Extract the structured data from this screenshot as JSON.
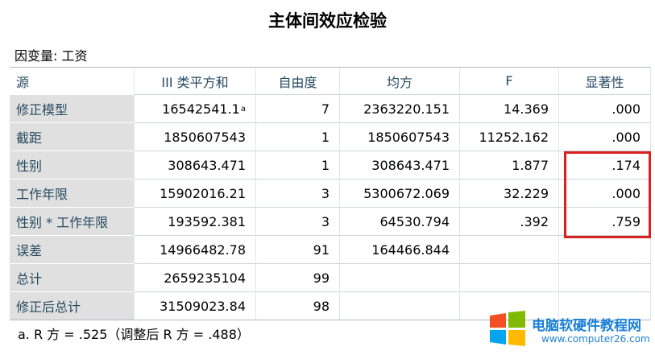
{
  "header": {
    "title": "主体间效应检验",
    "dependent": "因变量:  工资"
  },
  "table": {
    "columns": [
      "源",
      "III 类平方和",
      "自由度",
      "均方",
      "F",
      "显著性"
    ],
    "rows": [
      {
        "label": "修正模型",
        "values": [
          "16542541.1",
          "7",
          "2363220.151",
          "14.369",
          ".000"
        ],
        "note": "a"
      },
      {
        "label": "截距",
        "values": [
          "1850607543",
          "1",
          "1850607543",
          "11252.162",
          ".000"
        ]
      },
      {
        "label": "性别",
        "values": [
          "308643.471",
          "1",
          "308643.471",
          "1.877",
          ".174"
        ]
      },
      {
        "label": "工作年限",
        "values": [
          "15902016.21",
          "3",
          "5300672.069",
          "32.229",
          ".000"
        ]
      },
      {
        "label": "性别 * 工作年限",
        "values": [
          "193592.381",
          "3",
          "64530.794",
          ".392",
          ".759"
        ]
      },
      {
        "label": "误差",
        "values": [
          "14966482.78",
          "91",
          "164466.844"
        ]
      },
      {
        "label": "总计",
        "values": [
          "2659235104",
          "99"
        ]
      },
      {
        "label": "修正后总计",
        "values": [
          "31509023.84",
          "98"
        ]
      }
    ],
    "footnote": "a. R 方 = .525（调整后 R 方 = .488）"
  },
  "watermark": {
    "text": "电脑软硬件教程网",
    "url": "www.computer26.com"
  }
}
